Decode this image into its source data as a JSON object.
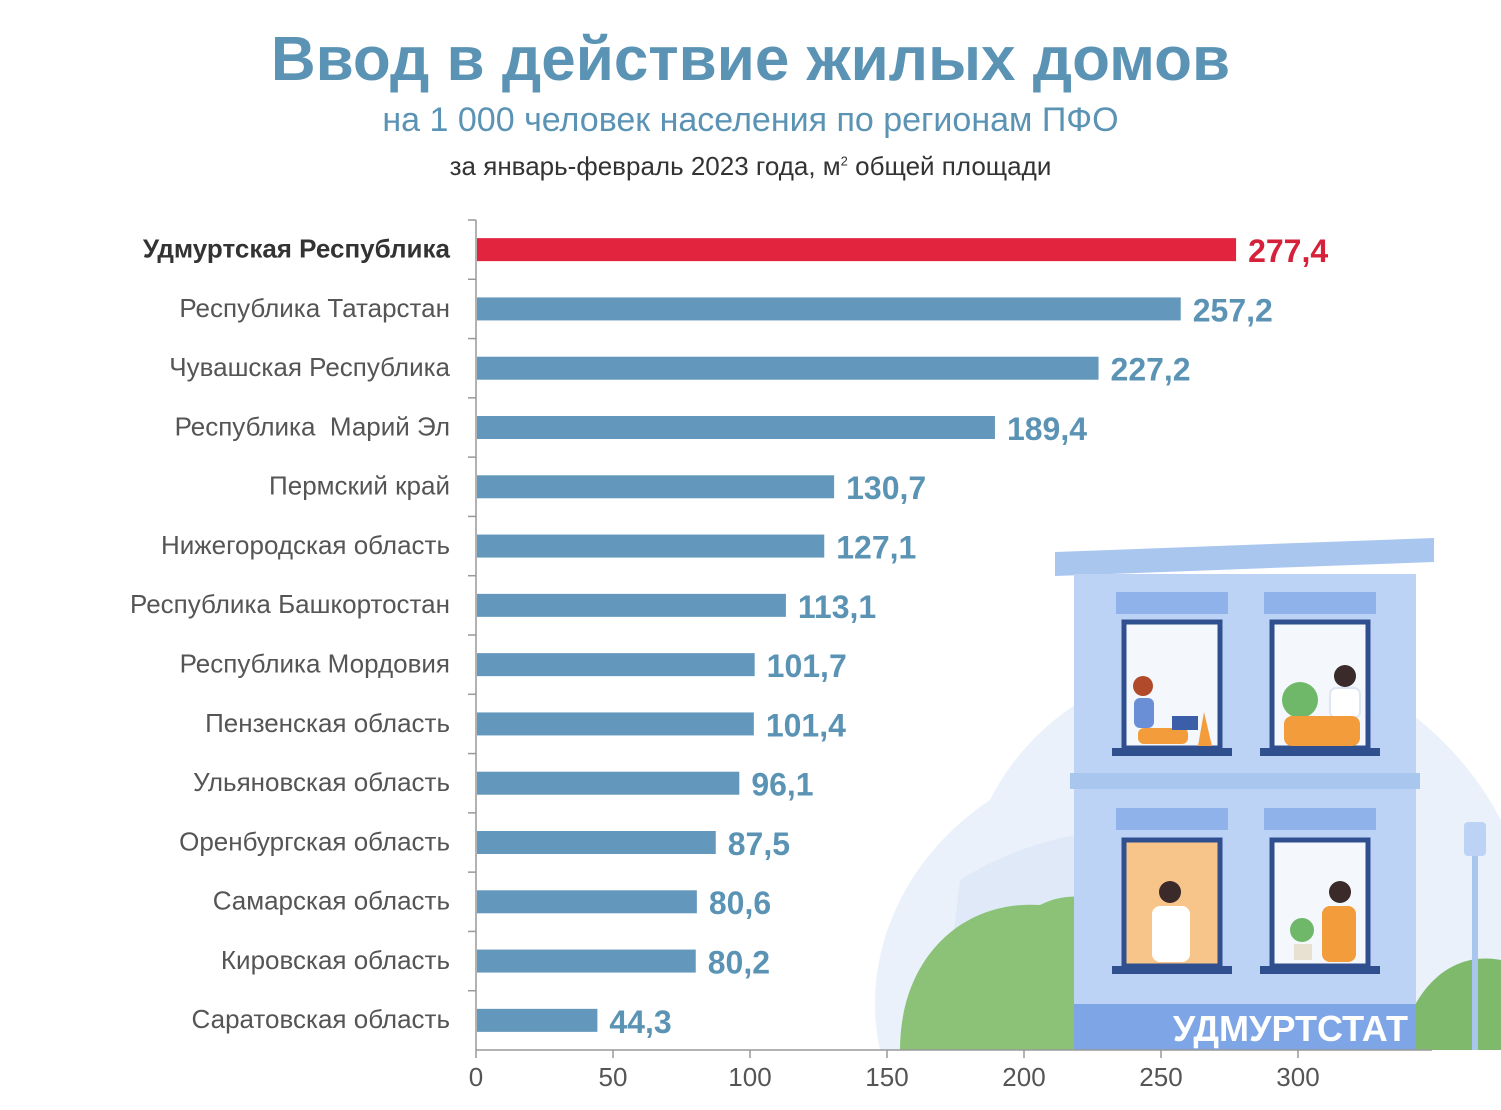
{
  "header": {
    "title": "Ввод в действие жилых домов",
    "subtitle": "на 1 000 человек населения по регионам ПФО",
    "period_main": "за январь-февраль 2023 года, м",
    "period_sup": "2",
    "period_tail": " общей площади"
  },
  "brand": {
    "text": "УДМУРТСТАТ"
  },
  "colors": {
    "bar": "#6398bc",
    "highlight": "#e2243f",
    "value_text": "#5b93b5",
    "highlight_text": "#d6213b"
  },
  "chart_data": {
    "type": "bar",
    "orientation": "horizontal",
    "categories": [
      "Удмуртская Республика",
      "Республика Татарстан",
      "Чувашская Республика",
      "Республика  Марий Эл",
      "Пермский край",
      "Нижегородская область",
      "Республика Башкортостан",
      "Республика Мордовия",
      "Пензенская область",
      "Ульяновская область",
      "Оренбургская область",
      "Самарская область",
      "Кировская область",
      "Саратовская область"
    ],
    "values": [
      277.4,
      257.2,
      227.2,
      189.4,
      130.7,
      127.1,
      113.1,
      101.7,
      101.4,
      96.1,
      87.5,
      80.6,
      80.2,
      44.3
    ],
    "value_labels": [
      "277,4",
      "257,2",
      "227,2",
      "189,4",
      "130,7",
      "127,1",
      "113,1",
      "101,7",
      "101,4",
      "96,1",
      "87,5",
      "80,6",
      "80,2",
      "44,3"
    ],
    "highlight_index": 0,
    "xlim": [
      0,
      350
    ],
    "xticks": [
      0,
      50,
      100,
      150,
      200,
      250,
      300
    ],
    "grid": false,
    "legend": "none"
  }
}
